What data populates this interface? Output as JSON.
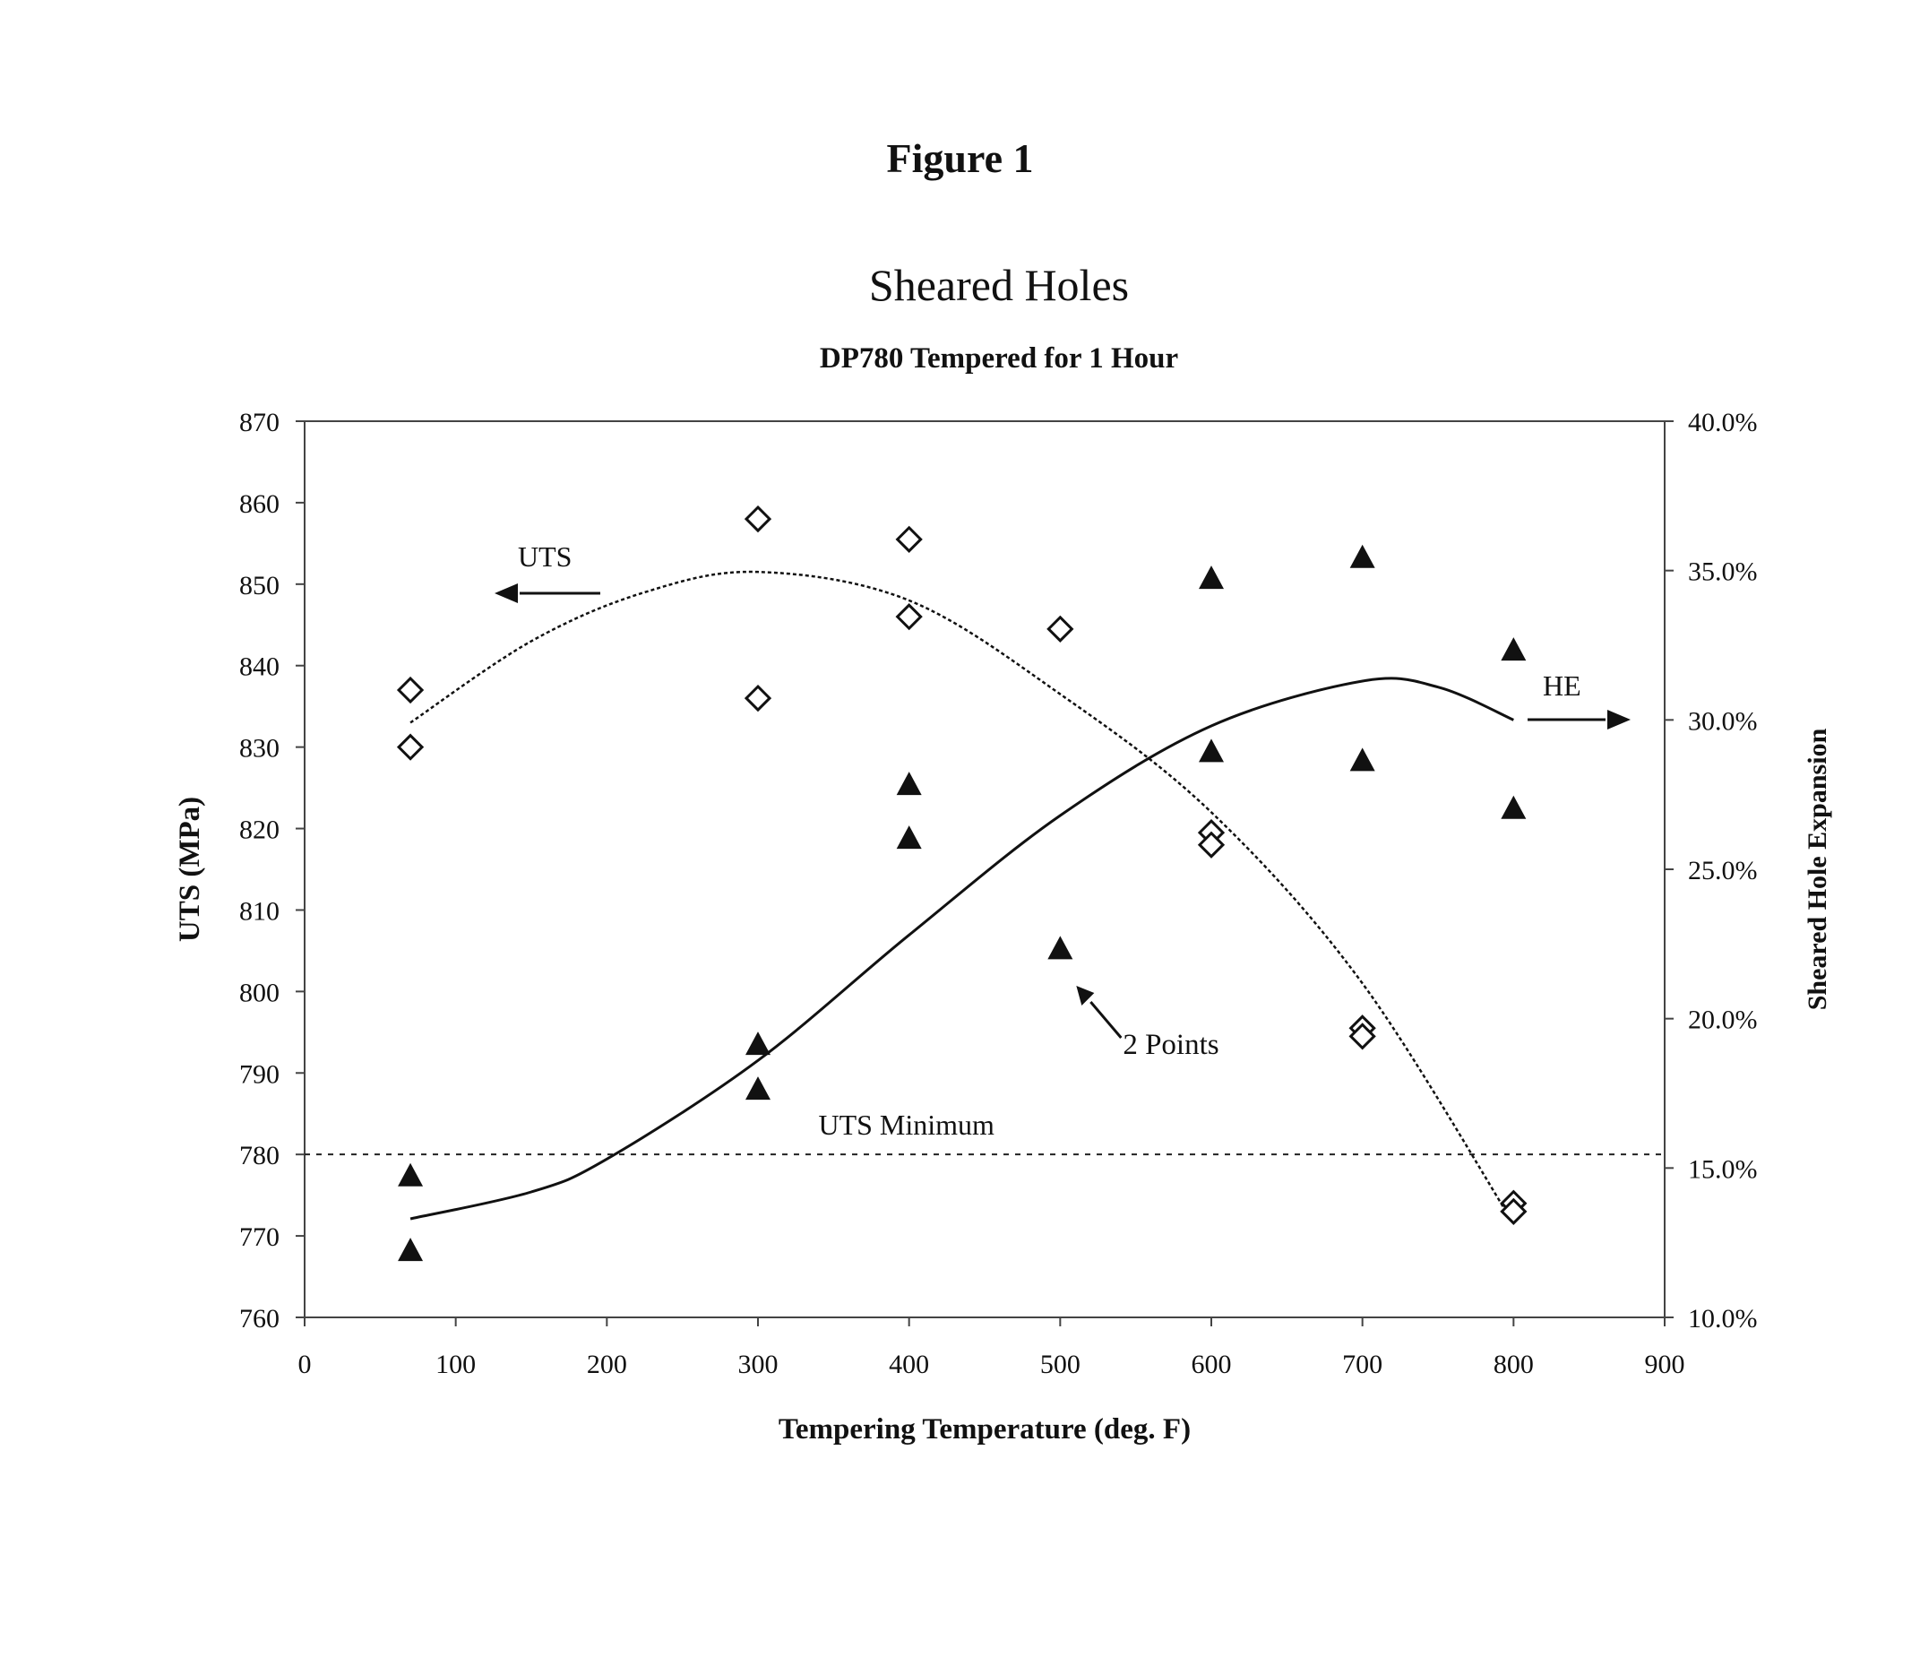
{
  "figure_label": "Figure 1",
  "chart_data": {
    "type": "scatter",
    "title": "Sheared Holes",
    "subtitle": "DP780 Tempered for 1 Hour",
    "xlabel": "Tempering Temperature (deg. F)",
    "ylabel": "UTS (MPa)",
    "y2label": "Sheared Hole Expansion",
    "xlim": [
      0,
      900
    ],
    "ylim": [
      760,
      870
    ],
    "y2lim": [
      10.0,
      40.0
    ],
    "x_ticks": [
      "0",
      "100",
      "200",
      "300",
      "400",
      "500",
      "600",
      "700",
      "800",
      "900"
    ],
    "y_ticks": [
      "760",
      "770",
      "780",
      "790",
      "800",
      "810",
      "820",
      "830",
      "840",
      "850",
      "860",
      "870"
    ],
    "y2_ticks": [
      "10.0%",
      "15.0%",
      "20.0%",
      "25.0%",
      "30.0%",
      "35.0%",
      "40.0%"
    ],
    "grid": false,
    "series": [
      {
        "name": "UTS",
        "axis": "left",
        "marker": "open-diamond",
        "points": [
          [
            70,
            837
          ],
          [
            70,
            830
          ],
          [
            300,
            858
          ],
          [
            300,
            836
          ],
          [
            400,
            855.5
          ],
          [
            400,
            846
          ],
          [
            500,
            844.5
          ],
          [
            600,
            819.5
          ],
          [
            600,
            818
          ],
          [
            700,
            795.5
          ],
          [
            700,
            794.5
          ],
          [
            800,
            774
          ],
          [
            800,
            773
          ]
        ]
      },
      {
        "name": "HE",
        "axis": "right",
        "marker": "filled-triangle",
        "points": [
          [
            70,
            14.7
          ],
          [
            70,
            12.2
          ],
          [
            300,
            19.1
          ],
          [
            300,
            17.6
          ],
          [
            400,
            27.8
          ],
          [
            400,
            26.0
          ],
          [
            500,
            22.3
          ],
          [
            600,
            34.7
          ],
          [
            600,
            28.9
          ],
          [
            700,
            35.4
          ],
          [
            700,
            28.6
          ],
          [
            800,
            32.3
          ],
          [
            800,
            27.0
          ]
        ]
      }
    ],
    "trend_lines": [
      {
        "series": "UTS",
        "axis": "left",
        "style": "dashed",
        "points": [
          [
            70,
            833
          ],
          [
            150,
            843
          ],
          [
            225,
            849
          ],
          [
            300,
            851.5
          ],
          [
            400,
            848
          ],
          [
            500,
            836.5
          ],
          [
            600,
            822
          ],
          [
            700,
            801
          ],
          [
            800,
            771.5
          ]
        ]
      },
      {
        "series": "HE",
        "axis": "right",
        "style": "solid",
        "points": [
          [
            70,
            13.3
          ],
          [
            150,
            14.2
          ],
          [
            200,
            15.3
          ],
          [
            300,
            18.6
          ],
          [
            400,
            22.8
          ],
          [
            500,
            26.8
          ],
          [
            600,
            29.8
          ],
          [
            700,
            31.3
          ],
          [
            750,
            31.1
          ],
          [
            800,
            30.0
          ]
        ]
      }
    ],
    "reference_line": {
      "label": "UTS Minimum",
      "axis": "left",
      "value": 780,
      "style": "dotted"
    },
    "annotations": [
      {
        "text": "UTS",
        "points_to": "left axis"
      },
      {
        "text": "HE",
        "points_to": "right axis"
      },
      {
        "text": "2 Points",
        "points_to": [
          500,
          22.3
        ]
      }
    ]
  }
}
